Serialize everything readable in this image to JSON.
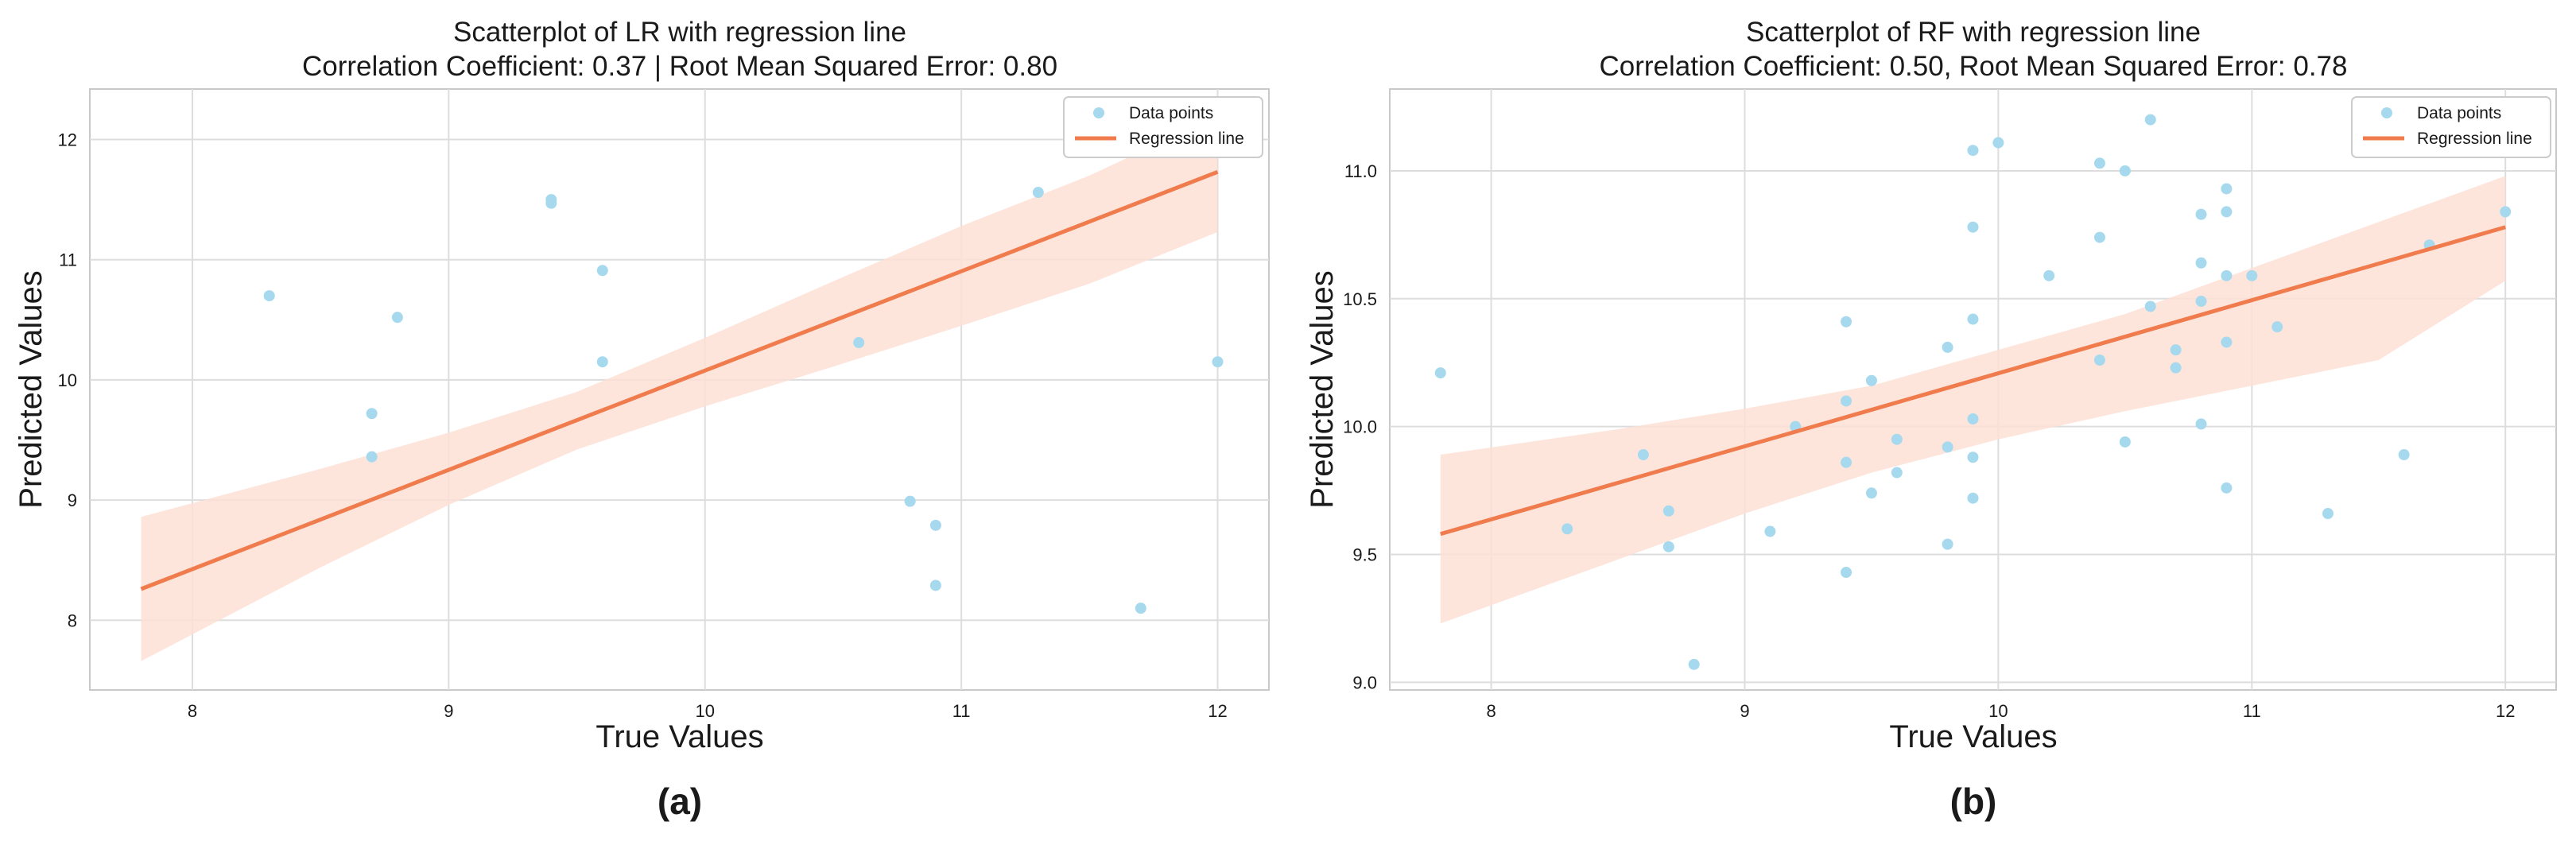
{
  "chart_data": [
    {
      "type": "scatter",
      "title": "Scatterplot of LR with regression line",
      "subtitle": "Correlation Coefficient: 0.37 | Root Mean Squared Error: 0.80",
      "xlabel": "True Values",
      "ylabel": "Predicted Values",
      "xlim": [
        7.6,
        12.2
      ],
      "ylim": [
        7.42,
        12.42
      ],
      "xticks": [
        8,
        9,
        10,
        11,
        12
      ],
      "yticks": [
        8,
        9,
        10,
        11,
        12
      ],
      "grid": true,
      "legend_position": "top-right",
      "legend": {
        "points": "Data points",
        "line": "Regression line"
      },
      "panel_label": "(a)",
      "points": [
        {
          "x": 8.3,
          "y": 10.7
        },
        {
          "x": 8.7,
          "y": 9.72
        },
        {
          "x": 8.7,
          "y": 9.36
        },
        {
          "x": 8.8,
          "y": 10.52
        },
        {
          "x": 9.4,
          "y": 11.5
        },
        {
          "x": 9.4,
          "y": 11.47
        },
        {
          "x": 9.6,
          "y": 10.91
        },
        {
          "x": 9.6,
          "y": 10.15
        },
        {
          "x": 10.6,
          "y": 10.31
        },
        {
          "x": 10.8,
          "y": 8.99
        },
        {
          "x": 10.9,
          "y": 8.79
        },
        {
          "x": 10.9,
          "y": 8.29
        },
        {
          "x": 11.3,
          "y": 11.56
        },
        {
          "x": 11.7,
          "y": 8.1
        },
        {
          "x": 12.0,
          "y": 10.15
        }
      ],
      "regression": {
        "x": [
          7.8,
          12.0
        ],
        "y": [
          8.26,
          11.73
        ]
      },
      "band": {
        "x": [
          7.8,
          8.5,
          9.0,
          9.5,
          10.0,
          10.5,
          11.0,
          11.5,
          12.0
        ],
        "upper": [
          8.86,
          9.26,
          9.56,
          9.9,
          10.35,
          10.82,
          11.28,
          11.7,
          12.2
        ],
        "lower": [
          7.66,
          8.44,
          8.96,
          9.42,
          9.78,
          10.11,
          10.45,
          10.8,
          11.23
        ]
      }
    },
    {
      "type": "scatter",
      "title": "Scatterplot of RF with regression line",
      "subtitle": "Correlation Coefficient: 0.50, Root Mean Squared Error: 0.78",
      "xlabel": "True Values",
      "ylabel": "Predicted Values",
      "xlim": [
        7.6,
        12.2
      ],
      "ylim": [
        8.97,
        11.32
      ],
      "xticks": [
        8,
        9,
        10,
        11,
        12
      ],
      "yticks": [
        9.0,
        9.5,
        10.0,
        10.5,
        11.0
      ],
      "ytick_labels": [
        "9.0",
        "9.5",
        "10.0",
        "10.5",
        "11.0"
      ],
      "grid": true,
      "legend_position": "top-right",
      "legend": {
        "points": "Data points",
        "line": "Regression line"
      },
      "panel_label": "(b)",
      "points": [
        {
          "x": 7.8,
          "y": 10.21
        },
        {
          "x": 8.3,
          "y": 9.6
        },
        {
          "x": 8.6,
          "y": 9.89
        },
        {
          "x": 8.7,
          "y": 9.67
        },
        {
          "x": 8.7,
          "y": 9.53
        },
        {
          "x": 8.8,
          "y": 9.07
        },
        {
          "x": 9.1,
          "y": 9.59
        },
        {
          "x": 9.2,
          "y": 10.0
        },
        {
          "x": 9.4,
          "y": 10.41
        },
        {
          "x": 9.4,
          "y": 10.1
        },
        {
          "x": 9.4,
          "y": 9.86
        },
        {
          "x": 9.4,
          "y": 9.43
        },
        {
          "x": 9.5,
          "y": 10.18
        },
        {
          "x": 9.5,
          "y": 9.74
        },
        {
          "x": 9.6,
          "y": 9.95
        },
        {
          "x": 9.6,
          "y": 9.82
        },
        {
          "x": 9.8,
          "y": 10.31
        },
        {
          "x": 9.8,
          "y": 9.92
        },
        {
          "x": 9.8,
          "y": 9.54
        },
        {
          "x": 9.9,
          "y": 11.08
        },
        {
          "x": 9.9,
          "y": 10.78
        },
        {
          "x": 9.9,
          "y": 10.42
        },
        {
          "x": 9.9,
          "y": 10.03
        },
        {
          "x": 9.9,
          "y": 9.88
        },
        {
          "x": 9.9,
          "y": 9.72
        },
        {
          "x": 10.0,
          "y": 11.11
        },
        {
          "x": 10.2,
          "y": 10.59
        },
        {
          "x": 10.4,
          "y": 11.03
        },
        {
          "x": 10.4,
          "y": 10.74
        },
        {
          "x": 10.4,
          "y": 10.26
        },
        {
          "x": 10.5,
          "y": 11.0
        },
        {
          "x": 10.5,
          "y": 9.94
        },
        {
          "x": 10.6,
          "y": 11.2
        },
        {
          "x": 10.6,
          "y": 10.47
        },
        {
          "x": 10.7,
          "y": 10.3
        },
        {
          "x": 10.7,
          "y": 10.23
        },
        {
          "x": 10.8,
          "y": 10.83
        },
        {
          "x": 10.8,
          "y": 10.64
        },
        {
          "x": 10.8,
          "y": 10.49
        },
        {
          "x": 10.8,
          "y": 10.01
        },
        {
          "x": 10.9,
          "y": 10.93
        },
        {
          "x": 10.9,
          "y": 10.84
        },
        {
          "x": 10.9,
          "y": 10.59
        },
        {
          "x": 10.9,
          "y": 10.33
        },
        {
          "x": 10.9,
          "y": 9.76
        },
        {
          "x": 11.0,
          "y": 10.59
        },
        {
          "x": 11.1,
          "y": 10.39
        },
        {
          "x": 11.3,
          "y": 9.66
        },
        {
          "x": 11.6,
          "y": 9.89
        },
        {
          "x": 11.7,
          "y": 10.71
        },
        {
          "x": 12.0,
          "y": 10.84
        }
      ],
      "regression": {
        "x": [
          7.8,
          12.0
        ],
        "y": [
          9.58,
          10.78
        ]
      },
      "band": {
        "x": [
          7.8,
          8.5,
          9.0,
          9.5,
          10.0,
          10.5,
          11.0,
          11.5,
          12.0
        ],
        "upper": [
          9.89,
          9.99,
          10.07,
          10.16,
          10.3,
          10.44,
          10.62,
          10.8,
          10.98
        ],
        "lower": [
          9.23,
          9.48,
          9.66,
          9.82,
          9.95,
          10.06,
          10.16,
          10.26,
          10.57
        ]
      }
    }
  ],
  "colors": {
    "points": "#a6d9ee",
    "line": "#f07c4e",
    "band": "#fde0d6",
    "grid": "#dddddd",
    "axis": "#c9c9c9",
    "text": "#1a1a1a"
  }
}
